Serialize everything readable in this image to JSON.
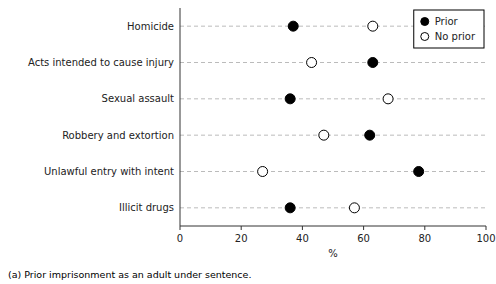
{
  "chart_data": {
    "type": "dot",
    "orientation": "horizontal",
    "categories": [
      "Homicide",
      "Acts intended to cause injury",
      "Sexual assault",
      "Robbery and extortion",
      "Unlawful entry with intent",
      "Illicit drugs"
    ],
    "series": [
      {
        "name": "Prior",
        "color": "#000000",
        "marker": "circle",
        "values": [
          37,
          63,
          36,
          62,
          78,
          36
        ]
      },
      {
        "name": "No prior",
        "color": "#ffffff",
        "marker": "circle",
        "values": [
          63,
          43,
          68,
          47,
          27,
          57
        ]
      }
    ],
    "xlim": [
      0,
      100
    ],
    "xticks": [
      0,
      20,
      40,
      60,
      80,
      100
    ],
    "x_label": "%",
    "annotations": [
      "(a) Prior imprisonment as an adult under sentence."
    ],
    "legend": "upper right",
    "grid": false
  }
}
